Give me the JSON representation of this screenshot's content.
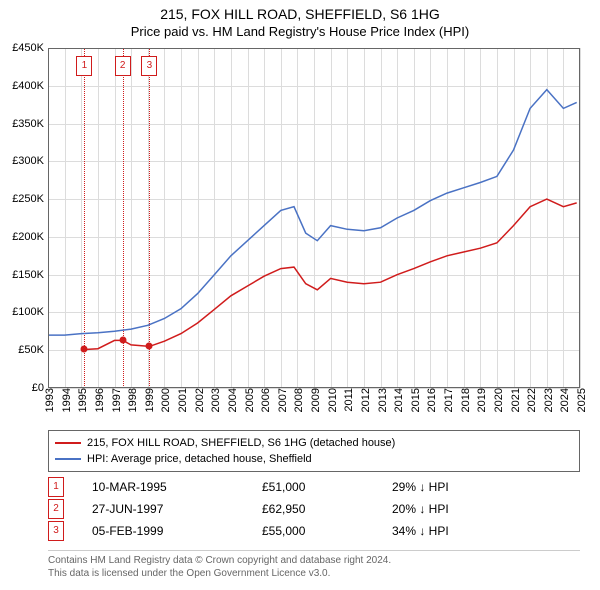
{
  "title": {
    "line1": "215, FOX HILL ROAD, SHEFFIELD, S6 1HG",
    "line2": "Price paid vs. HM Land Registry's House Price Index (HPI)"
  },
  "chart": {
    "type": "line",
    "background_color": "#ffffff",
    "grid_color": "#dcdcdc",
    "axis_color": "#666666",
    "label_fontsize": 11,
    "title_fontsize": 14,
    "x": {
      "min": 1993,
      "max": 2025,
      "ticks": [
        1993,
        1994,
        1995,
        1996,
        1997,
        1998,
        1999,
        2000,
        2001,
        2002,
        2003,
        2004,
        2005,
        2006,
        2007,
        2008,
        2009,
        2010,
        2011,
        2012,
        2013,
        2014,
        2015,
        2016,
        2017,
        2018,
        2019,
        2020,
        2021,
        2022,
        2023,
        2024,
        2025
      ]
    },
    "y": {
      "min": 0,
      "max": 450000,
      "tick_step": 50000,
      "tick_labels": [
        "£0",
        "£50K",
        "£100K",
        "£150K",
        "£200K",
        "£250K",
        "£300K",
        "£350K",
        "£400K",
        "£450K"
      ]
    },
    "series": [
      {
        "id": "hpi",
        "label": "HPI: Average price, detached house, Sheffield",
        "color": "#4a72c4",
        "line_width": 1.5,
        "x": [
          1993.0,
          1994.0,
          1995.0,
          1996.0,
          1997.0,
          1998.0,
          1999.0,
          2000.0,
          2001.0,
          2002.0,
          2003.0,
          2004.0,
          2005.0,
          2006.0,
          2007.0,
          2007.8,
          2008.5,
          2009.2,
          2010.0,
          2011.0,
          2012.0,
          2013.0,
          2014.0,
          2015.0,
          2016.0,
          2017.0,
          2018.0,
          2019.0,
          2020.0,
          2021.0,
          2022.0,
          2023.0,
          2024.0,
          2024.8
        ],
        "y": [
          70000,
          70000,
          72000,
          73000,
          75000,
          78000,
          83000,
          92000,
          105000,
          125000,
          150000,
          175000,
          195000,
          215000,
          235000,
          240000,
          205000,
          195000,
          215000,
          210000,
          208000,
          212000,
          225000,
          235000,
          248000,
          258000,
          265000,
          272000,
          280000,
          315000,
          370000,
          395000,
          370000,
          378000
        ]
      },
      {
        "id": "property",
        "label": "215, FOX HILL ROAD, SHEFFIELD, S6 1HG (detached house)",
        "color": "#d01c1c",
        "line_width": 1.5,
        "x": [
          1995.2,
          1996.0,
          1997.0,
          1997.5,
          1998.0,
          1999.1,
          2000.0,
          2001.0,
          2002.0,
          2003.0,
          2004.0,
          2005.0,
          2006.0,
          2007.0,
          2007.8,
          2008.5,
          2009.2,
          2010.0,
          2011.0,
          2012.0,
          2013.0,
          2014.0,
          2015.0,
          2016.0,
          2017.0,
          2018.0,
          2019.0,
          2020.0,
          2021.0,
          2022.0,
          2023.0,
          2024.0,
          2024.8
        ],
        "y": [
          51000,
          52000,
          62950,
          62950,
          57000,
          55000,
          62000,
          72000,
          86000,
          104000,
          122000,
          135000,
          148000,
          158000,
          160000,
          138000,
          130000,
          145000,
          140000,
          138000,
          140000,
          150000,
          158000,
          167000,
          175000,
          180000,
          185000,
          192000,
          215000,
          240000,
          250000,
          240000,
          245000
        ]
      }
    ],
    "events": [
      {
        "n": "1",
        "x": 1995.19,
        "color": "#d01c1c"
      },
      {
        "n": "2",
        "x": 1997.49,
        "color": "#d01c1c"
      },
      {
        "n": "3",
        "x": 1999.1,
        "color": "#d01c1c"
      }
    ],
    "sale_markers": [
      {
        "x": 1995.19,
        "y": 51000,
        "color": "#d01c1c",
        "size": 7
      },
      {
        "x": 1997.49,
        "y": 62950,
        "color": "#d01c1c",
        "size": 7
      },
      {
        "x": 1999.1,
        "y": 55000,
        "color": "#d01c1c",
        "size": 7
      }
    ]
  },
  "legend": {
    "items": [
      {
        "color": "#d01c1c",
        "label": "215, FOX HILL ROAD, SHEFFIELD, S6 1HG (detached house)"
      },
      {
        "color": "#4a72c4",
        "label": "HPI: Average price, detached house, Sheffield"
      }
    ]
  },
  "sales": {
    "marker_color": "#d01c1c",
    "rows": [
      {
        "n": "1",
        "date": "10-MAR-1995",
        "price": "£51,000",
        "delta": "29% ↓ HPI"
      },
      {
        "n": "2",
        "date": "27-JUN-1997",
        "price": "£62,950",
        "delta": "20% ↓ HPI"
      },
      {
        "n": "3",
        "date": "05-FEB-1999",
        "price": "£55,000",
        "delta": "34% ↓ HPI"
      }
    ]
  },
  "footer": {
    "line1": "Contains HM Land Registry data © Crown copyright and database right 2024.",
    "line2": "This data is licensed under the Open Government Licence v3.0."
  }
}
